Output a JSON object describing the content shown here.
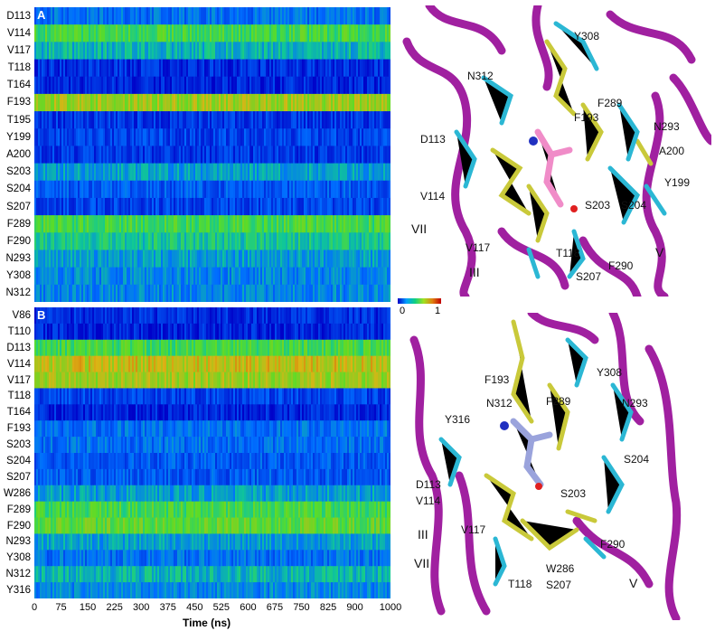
{
  "panelA": {
    "letter": "A",
    "rows": [
      "D113",
      "V114",
      "V117",
      "T118",
      "T164",
      "F193",
      "T195",
      "Y199",
      "A200",
      "S203",
      "S204",
      "S207",
      "F289",
      "F290",
      "N293",
      "Y308",
      "N312"
    ],
    "levels": [
      0.25,
      0.55,
      0.4,
      0.1,
      0.08,
      0.7,
      0.12,
      0.15,
      0.12,
      0.35,
      0.2,
      0.15,
      0.55,
      0.45,
      0.35,
      0.3,
      0.3
    ]
  },
  "panelB": {
    "letter": "B",
    "rows": [
      "V86",
      "T110",
      "D113",
      "V114",
      "V117",
      "T118",
      "T164",
      "F193",
      "S203",
      "S204",
      "S207",
      "W286",
      "F289",
      "F290",
      "N293",
      "Y308",
      "N312",
      "Y316"
    ],
    "levels": [
      0.1,
      0.08,
      0.55,
      0.75,
      0.7,
      0.15,
      0.08,
      0.25,
      0.25,
      0.2,
      0.2,
      0.35,
      0.55,
      0.6,
      0.35,
      0.25,
      0.4,
      0.3
    ]
  },
  "xaxis": {
    "title": "Time (ns)",
    "ticks": [
      "0",
      "75",
      "150",
      "225",
      "300",
      "375",
      "450",
      "525",
      "600",
      "675",
      "750",
      "825",
      "900",
      "1000"
    ],
    "range": [
      0,
      1000
    ]
  },
  "colorbar": {
    "min": "0",
    "max": "1"
  },
  "structureA": {
    "residues": [
      "Y308",
      "N312",
      "F289",
      "F193",
      "N293",
      "D113",
      "A200",
      "Y199",
      "V114",
      "S203",
      "S204",
      "V117",
      "T118",
      "S207",
      "F290"
    ],
    "helices": [
      "VII",
      "III",
      "V"
    ]
  },
  "structureB": {
    "residues": [
      "Y308",
      "F193",
      "N293",
      "N312",
      "F289",
      "Y316",
      "S204",
      "D113",
      "V114",
      "S203",
      "V117",
      "F290",
      "W286",
      "T118",
      "S207"
    ],
    "helices": [
      "III",
      "VII",
      "V"
    ]
  },
  "colors": {
    "ribbon": "#a020a0",
    "cyan": "#2bb7d4",
    "yellow": "#c9c93a",
    "ligandA": "#f08cc8",
    "ligandB": "#9aa3dc"
  }
}
